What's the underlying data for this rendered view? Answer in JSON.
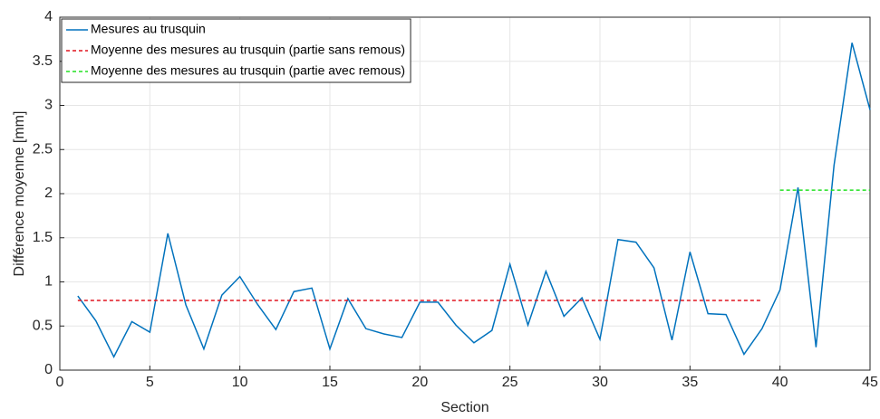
{
  "chart_data": {
    "type": "line",
    "xlabel": "Section",
    "ylabel": "Différence moyenne [mm]",
    "xlim": [
      0,
      45
    ],
    "xticks": [
      0,
      5,
      10,
      15,
      20,
      25,
      30,
      35,
      40,
      45
    ],
    "ylim": [
      0,
      4
    ],
    "yticks": [
      0,
      0.5,
      1,
      1.5,
      2,
      2.5,
      3,
      3.5,
      4
    ],
    "grid": true,
    "legend": "northwest",
    "series": [
      {
        "name": "Mesures au trusquin",
        "color": "#0072bd",
        "dash": "solid",
        "x": [
          1,
          2,
          3,
          4,
          5,
          6,
          7,
          8,
          9,
          10,
          11,
          12,
          13,
          14,
          15,
          16,
          17,
          18,
          19,
          20,
          21,
          22,
          23,
          24,
          25,
          26,
          27,
          28,
          29,
          30,
          31,
          32,
          33,
          34,
          35,
          36,
          37,
          38,
          39,
          40,
          41,
          42,
          43,
          44,
          45
        ],
        "values": [
          0.84,
          0.56,
          0.15,
          0.55,
          0.43,
          1.55,
          0.74,
          0.24,
          0.85,
          1.06,
          0.74,
          0.46,
          0.89,
          0.93,
          0.24,
          0.81,
          0.47,
          0.41,
          0.37,
          0.77,
          0.77,
          0.51,
          0.31,
          0.45,
          1.2,
          0.51,
          1.12,
          0.61,
          0.82,
          0.35,
          1.48,
          1.45,
          1.16,
          0.34,
          1.34,
          0.64,
          0.63,
          0.18,
          0.47,
          0.91,
          2.07,
          0.26,
          2.32,
          3.71,
          2.95
        ]
      },
      {
        "name": "Moyenne des mesures au trusquin (partie sans remous)",
        "color": "#e0141e",
        "dash": "dashed",
        "x": [
          1,
          39
        ],
        "values": [
          0.79,
          0.79
        ]
      },
      {
        "name": "Moyenne des mesures au trusquin (partie avec remous)",
        "color": "#22e022",
        "dash": "dashed",
        "x": [
          40,
          45
        ],
        "values": [
          2.04,
          2.04
        ]
      }
    ]
  }
}
